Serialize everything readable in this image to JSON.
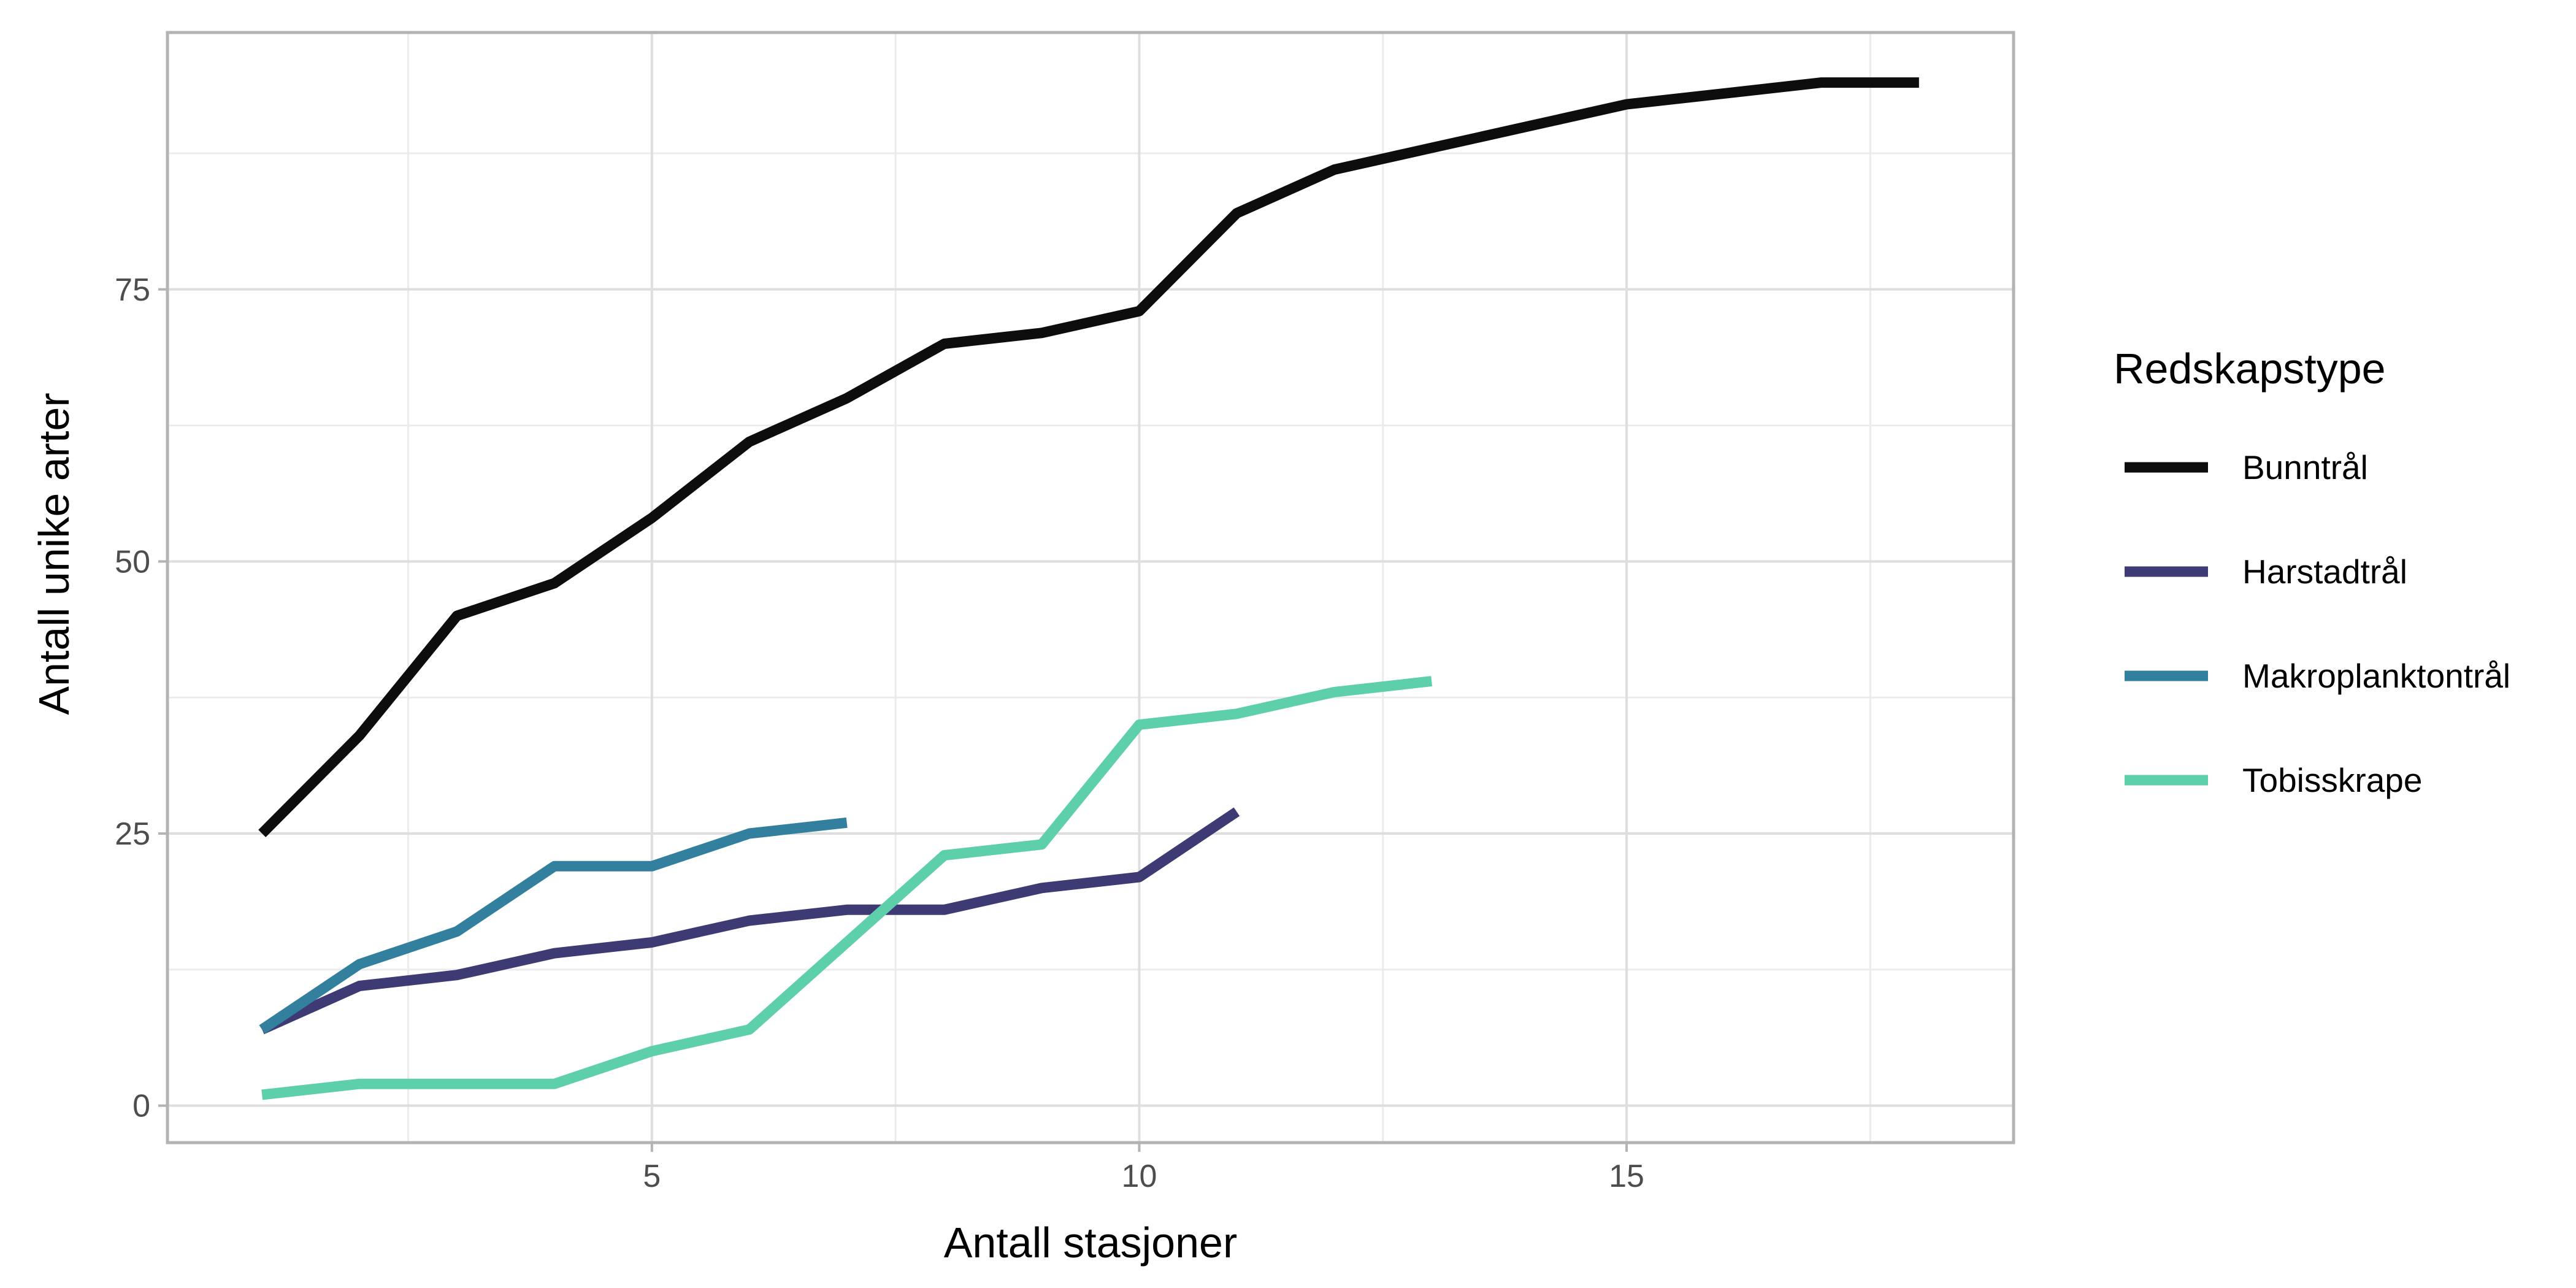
{
  "chart_data": {
    "type": "line",
    "title": "",
    "xlabel": "Antall stasjoner",
    "ylabel": "Antall unike arter",
    "xlim": [
      0.03,
      18.97
    ],
    "ylim": [
      -3.4,
      98.6
    ],
    "x_ticks": [
      5,
      10,
      15
    ],
    "x_tick_labels": [
      "5",
      "10",
      "15"
    ],
    "x_minor_ticks": [
      2.5,
      7.5,
      12.5,
      17.5
    ],
    "y_ticks": [
      0,
      25,
      50,
      75
    ],
    "y_tick_labels": [
      "0",
      "25",
      "50",
      "75"
    ],
    "y_minor_ticks": [
      12.5,
      37.5,
      62.5,
      87.5
    ],
    "grid": true,
    "legend": {
      "title": "Redskapstype",
      "position": "right"
    },
    "series": [
      {
        "name": "Bunntrål",
        "color": "#0d0d0d",
        "x": [
          1,
          2,
          3,
          4,
          5,
          6,
          7,
          8,
          9,
          10,
          11,
          12,
          13,
          14,
          15,
          16,
          17,
          18
        ],
        "values": [
          25,
          34,
          45,
          48,
          54,
          61,
          65,
          70,
          71,
          73,
          82,
          86,
          88,
          90,
          92,
          93,
          94,
          94
        ]
      },
      {
        "name": "Harstadtrål",
        "color": "#3e3a73",
        "x": [
          1,
          2,
          3,
          4,
          5,
          6,
          7,
          8,
          9,
          10,
          11
        ],
        "values": [
          7,
          11,
          12,
          14,
          15,
          17,
          18,
          18,
          20,
          21,
          27
        ]
      },
      {
        "name": "Makroplanktontrål",
        "color": "#33809e",
        "x": [
          1,
          2,
          3,
          4,
          5,
          6,
          7
        ],
        "values": [
          7,
          13,
          16,
          22,
          22,
          25,
          26
        ]
      },
      {
        "name": "Tobisskrape",
        "color": "#5ecfab",
        "x": [
          1,
          2,
          3,
          4,
          5,
          6,
          7,
          8,
          9,
          10,
          11,
          12,
          13
        ],
        "values": [
          1,
          2,
          2,
          2,
          5,
          7,
          15,
          23,
          24,
          35,
          36,
          38,
          39
        ]
      }
    ]
  }
}
